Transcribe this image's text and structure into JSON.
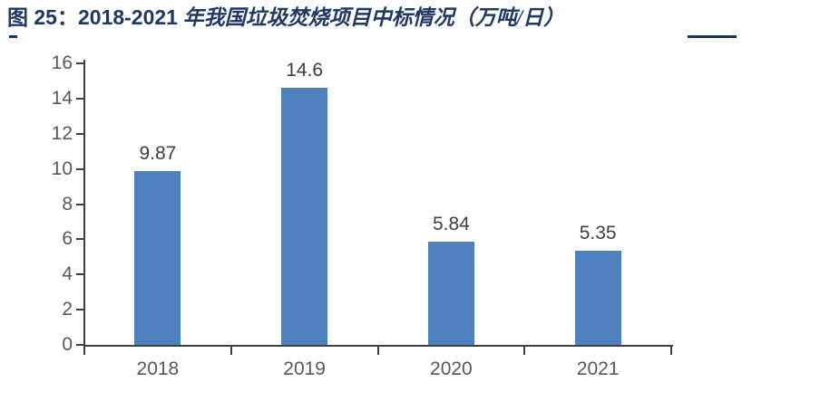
{
  "title": {
    "prefix": "图 25：",
    "range": "2018-2021",
    "rest": " 年我国垃圾焚烧项目中标情况（万吨/日）"
  },
  "colors": {
    "title_navy": "#1F3864",
    "accent_line": "#17375E",
    "bar": "#4E81BD",
    "axis": "#3F3F3F",
    "axis_label": "#595959",
    "data_label": "#404040",
    "background": "#FFFFFF"
  },
  "chart_data": {
    "type": "bar",
    "title": "图 25：2018-2021 年我国垃圾焚烧项目中标情况（万吨/日）",
    "categories": [
      "2018",
      "2019",
      "2020",
      "2021"
    ],
    "values": [
      9.87,
      14.6,
      5.84,
      5.35
    ],
    "data_labels": [
      "9.87",
      "14.6",
      "5.84",
      "5.35"
    ],
    "xlabel": "",
    "ylabel": "",
    "ylim": [
      0,
      16
    ],
    "yticks": [
      0,
      2,
      4,
      6,
      8,
      10,
      12,
      14,
      16
    ],
    "grid": false,
    "legend": false,
    "bar_color": "#4E81BD"
  }
}
